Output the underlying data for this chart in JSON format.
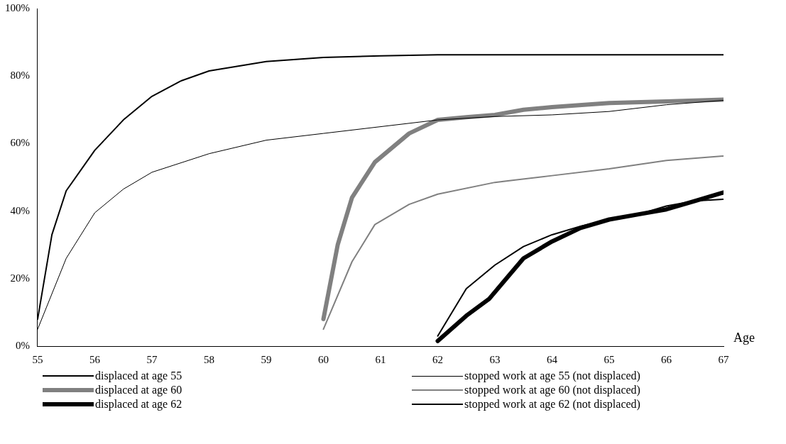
{
  "chart_data": {
    "type": "line",
    "xlabel": "Age",
    "xlim": [
      55,
      67
    ],
    "xticks": [
      55,
      56,
      57,
      58,
      59,
      60,
      61,
      62,
      63,
      64,
      65,
      66,
      67
    ],
    "ylim": [
      0,
      100
    ],
    "yticks": [
      {
        "value": 0,
        "label": "0%"
      },
      {
        "value": 20,
        "label": "20%"
      },
      {
        "value": 40,
        "label": "40%"
      },
      {
        "value": 60,
        "label": "60%"
      },
      {
        "value": 80,
        "label": "80%"
      },
      {
        "value": 100,
        "label": "100%"
      }
    ],
    "grid": false,
    "legend": "bottom",
    "marker": "none",
    "line_style": "solid",
    "series": [
      {
        "name": "displaced at age 55",
        "color": "#000000",
        "x": [
          55,
          55.25,
          55.5,
          56,
          56.5,
          57,
          57.5,
          58,
          59,
          60,
          61,
          62,
          63,
          64,
          65,
          66,
          67
        ],
        "values": [
          8,
          33,
          46,
          58,
          67,
          74,
          78.5,
          81.5,
          84.3,
          85.5,
          86,
          86.3,
          86.3,
          86.3,
          86.3,
          86.3,
          86.3
        ]
      },
      {
        "name": "displaced at age 60",
        "color": "#808080",
        "x": [
          60,
          60.25,
          60.5,
          60.9,
          61.5,
          62,
          62.5,
          63,
          63.5,
          64,
          65,
          66,
          67
        ],
        "values": [
          8,
          30,
          44,
          54.5,
          63,
          67,
          67.8,
          68.5,
          70,
          70.8,
          72,
          72.5,
          73
        ]
      },
      {
        "name": "displaced at age 62",
        "color": "#000000",
        "x": [
          62,
          62.5,
          62.9,
          63.2,
          63.5,
          64,
          64.5,
          65,
          65.5,
          66,
          66.5,
          67
        ],
        "values": [
          1.5,
          9,
          14,
          20,
          26,
          31,
          35,
          37.5,
          39,
          40.5,
          43,
          45.5
        ]
      },
      {
        "name": "stopped work at age 55 (not displaced)",
        "color": "#000000",
        "x": [
          55,
          55.5,
          56,
          56.5,
          57,
          58,
          59,
          60,
          61,
          62,
          63,
          64,
          65,
          66,
          67
        ],
        "values": [
          5,
          26,
          39.5,
          46.5,
          51.5,
          57,
          61,
          63,
          65,
          67,
          68,
          68.5,
          69.5,
          71.5,
          72.8
        ]
      },
      {
        "name": "stopped work at age 60 (not displaced)",
        "color": "#808080",
        "x": [
          60,
          60.5,
          60.9,
          61.5,
          62,
          63,
          64,
          65,
          66,
          67
        ],
        "values": [
          5,
          25,
          36,
          42,
          45,
          48.5,
          50.5,
          52.5,
          55,
          56.3
        ]
      },
      {
        "name": "stopped work at age 62 (not displaced)",
        "color": "#000000",
        "x": [
          62,
          62.5,
          63,
          63.5,
          64,
          64.5,
          65,
          65.5,
          66,
          66.5,
          67
        ],
        "values": [
          3,
          17,
          24,
          29.5,
          33,
          35.5,
          37.5,
          39,
          41.5,
          43,
          43.5
        ]
      }
    ]
  }
}
